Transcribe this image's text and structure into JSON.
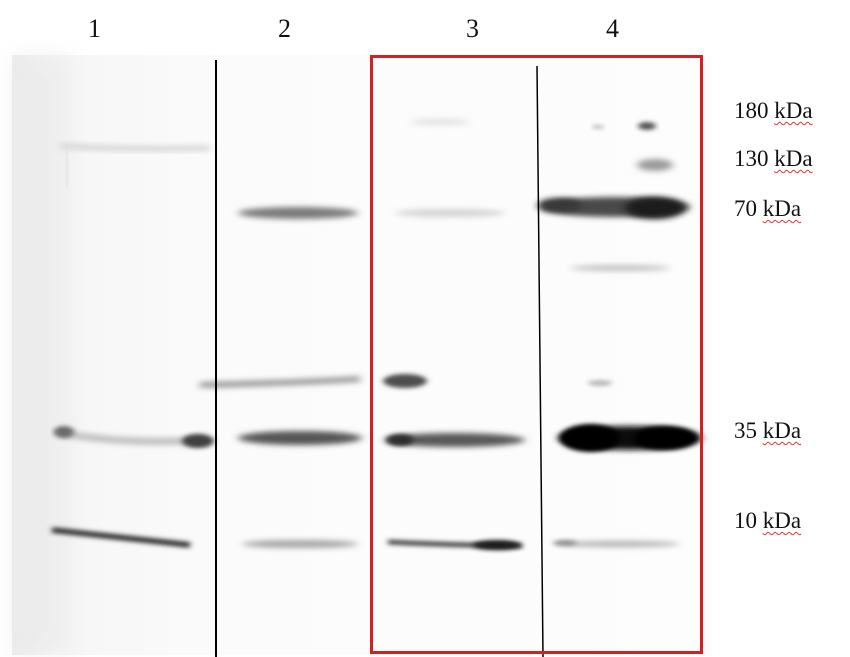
{
  "lanes": [
    "1",
    "2",
    "3",
    "4"
  ],
  "markers": [
    {
      "value": "180",
      "unit": "kDa"
    },
    {
      "value": "130",
      "unit": "kDa"
    },
    {
      "value": "70",
      "unit": "kDa"
    },
    {
      "value": "35",
      "unit": "kDa"
    },
    {
      "value": "10",
      "unit": "kDa"
    }
  ],
  "highlight_color": "#d42020",
  "highlighted_lanes": [
    "3",
    "4"
  ]
}
